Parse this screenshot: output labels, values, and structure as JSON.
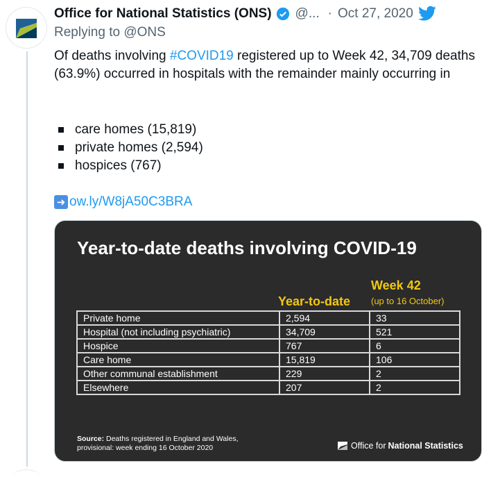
{
  "tweet": {
    "author_name": "Office for National Statistics (ONS)",
    "handle": "@...",
    "separator": "·",
    "date": "Oct 27, 2020",
    "replying_label": "Replying to",
    "replying_to": "@ONS",
    "text_before_tag": "Of deaths involving ",
    "hashtag": "#COVID19",
    "text_after_tag": " registered up to Week 42, 34,709 deaths (63.9%) occurred in hospitals with the remainder mainly occurring in",
    "bullets": [
      "care homes (15,819)",
      "private homes (2,594)",
      "hospices (767)"
    ],
    "link": "ow.ly/W8jA50C3BRA",
    "icons": {
      "verified": "verified-badge-icon",
      "twitter": "twitter-bird-icon",
      "link_arrow": "right-arrow-emoji-icon"
    },
    "colors": {
      "link": "#1d9bf0",
      "muted": "#536471",
      "twitter_blue": "#1d9bf0"
    }
  },
  "card": {
    "title": "Year-to-date deaths involving COVID-19",
    "col_ytd": "Year-to-date",
    "col_week": "Week 42",
    "col_week_sub": "(up to 16 October)",
    "rows": [
      {
        "label": "Private home",
        "ytd": "2,594",
        "week": "33"
      },
      {
        "label": "Hospital (not including psychiatric)",
        "ytd": "34,709",
        "week": "521"
      },
      {
        "label": "Hospice",
        "ytd": "767",
        "week": "6"
      },
      {
        "label": "Care home",
        "ytd": "15,819",
        "week": "106"
      },
      {
        "label": "Other communal establishment",
        "ytd": "229",
        "week": "2"
      },
      {
        "label": "Elsewhere",
        "ytd": "207",
        "week": "2"
      }
    ],
    "source_label": "Source:",
    "source_text": " Deaths registered in England and Wales,",
    "source_text2": "provisional: week ending 16 October 2020",
    "logo_part1": "Office for",
    "logo_part2": "National Statistics",
    "colors": {
      "background": "#2b2b2b",
      "accent": "#f2c811",
      "text": "#ffffff"
    }
  }
}
